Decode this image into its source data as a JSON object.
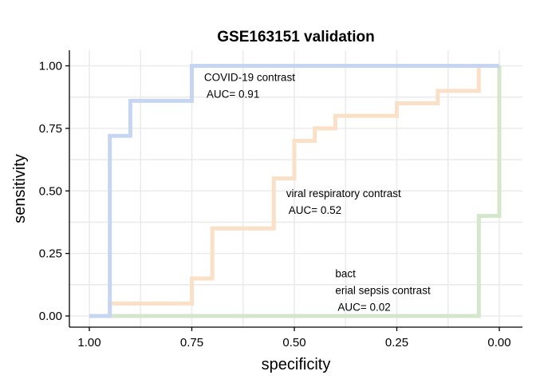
{
  "chart_data": {
    "type": "line",
    "title": "GSE163151 validation",
    "xlabel": "specificity",
    "ylabel": "sensitivity",
    "xlim": [
      1.0,
      0.0
    ],
    "x_reversed": true,
    "ylim": [
      0.0,
      1.0
    ],
    "xticks": [
      1.0,
      0.75,
      0.5,
      0.25,
      0.0
    ],
    "xtick_labels": [
      "1.00",
      "0.75",
      "0.50",
      "0.25",
      "0.00"
    ],
    "yticks": [
      0.0,
      0.25,
      0.5,
      0.75,
      1.0
    ],
    "ytick_labels": [
      "0.00",
      "0.25",
      "0.50",
      "0.75",
      "1.00"
    ],
    "grid": true,
    "legend": "none",
    "series": [
      {
        "color": "#c6d6f2",
        "specificity": [
          1.0,
          0.95,
          0.95,
          0.95,
          0.9,
          0.9,
          0.75,
          0.75,
          0.05,
          0.0
        ],
        "sensitivity": [
          0.0,
          0.0,
          0.72,
          0.72,
          0.72,
          0.86,
          0.86,
          1.0,
          1.0,
          1.0
        ]
      },
      {
        "color": "#fae0c6",
        "specificity": [
          1.0,
          0.95,
          0.95,
          0.75,
          0.75,
          0.7,
          0.7,
          0.55,
          0.55,
          0.5,
          0.5,
          0.45,
          0.45,
          0.4,
          0.4,
          0.25,
          0.25,
          0.15,
          0.15,
          0.05,
          0.05,
          0.0
        ],
        "sensitivity": [
          0.0,
          0.0,
          0.05,
          0.05,
          0.15,
          0.15,
          0.35,
          0.35,
          0.55,
          0.55,
          0.7,
          0.7,
          0.75,
          0.75,
          0.8,
          0.8,
          0.85,
          0.85,
          0.9,
          0.9,
          1.0,
          1.0
        ]
      },
      {
        "color": "#d4e6cb",
        "specificity": [
          1.0,
          0.05,
          0.05,
          0.0,
          0.0
        ],
        "sensitivity": [
          0.0,
          0.0,
          0.4,
          0.4,
          1.0
        ]
      }
    ],
    "annotations": [
      {
        "lines": [
          "COVID-19 contrast",
          " AUC= 0.91"
        ],
        "x": 0.72,
        "y": 0.94
      },
      {
        "lines": [
          "viral respiratory contrast",
          " AUC= 0.52"
        ],
        "x": 0.52,
        "y": 0.475
      },
      {
        "lines": [
          "bact",
          "erial sepsis contrast",
          " AUC= 0.02"
        ],
        "x": 0.4,
        "y": 0.155
      }
    ]
  }
}
